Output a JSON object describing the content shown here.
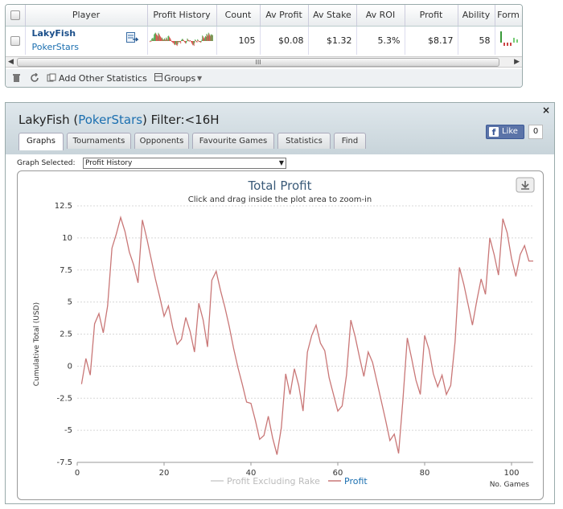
{
  "stats": {
    "columns": [
      "Player",
      "Profit History",
      "Count",
      "Av Profit",
      "Av Stake",
      "Av ROI",
      "Profit",
      "Ability",
      "Form"
    ],
    "row": {
      "player": "LakyFish",
      "site": "PokerStars",
      "count": "105",
      "av_profit": "$0.08",
      "av_stake": "$1.32",
      "av_roi": "5.3%",
      "profit": "$8.17",
      "ability": "58"
    },
    "toolbar": {
      "add_other": "Add Other Statistics",
      "groups": "Groups"
    },
    "scroll_grip": "III"
  },
  "window": {
    "player": "LakyFish",
    "paren_open": " (",
    "site": "PokerStars",
    "filter": ") Filter:<16H",
    "close": "×",
    "like": "Like",
    "like_count": "0",
    "tabs": [
      "Graphs",
      "Tournaments",
      "Opponents",
      "Favourite Games",
      "Statistics",
      "Find"
    ],
    "active_tab": "Graphs",
    "graph_selected_label": "Graph Selected:",
    "graph_selected_value": "Profit History"
  },
  "colors": {
    "profit_line": "#c97777",
    "rake_line": "#cccccc",
    "title": "#3a5a78"
  },
  "chart_data": {
    "type": "line",
    "title": "Total Profit",
    "subtitle": "Click and drag inside the plot area to zoom-in",
    "xlabel": "No. Games",
    "ylabel": "Cumulative Total (USD)",
    "xlim": [
      0,
      105
    ],
    "ylim": [
      -7.5,
      12.5
    ],
    "xticks": [
      0,
      20,
      40,
      60,
      80,
      100
    ],
    "yticks": [
      -7.5,
      -5,
      -2.5,
      0,
      2.5,
      5,
      7.5,
      10,
      12.5
    ],
    "xtick_labels": [
      "0",
      "20",
      "40",
      "60",
      "80",
      "100"
    ],
    "ytick_labels": [
      "-7.5",
      "-5",
      "-2.5",
      "0",
      "2.5",
      "5",
      "7.5",
      "10",
      "12.5"
    ],
    "legend": [
      {
        "name": "Profit Excluding Rake",
        "color": "#cccccc"
      },
      {
        "name": "Profit",
        "color": "#c97777"
      }
    ],
    "series": [
      {
        "name": "Profit",
        "color": "#c97777",
        "x": [
          1,
          2,
          3,
          4,
          5,
          6,
          7,
          8,
          9,
          10,
          11,
          12,
          13,
          14,
          15,
          16,
          17,
          18,
          19,
          20,
          21,
          22,
          23,
          24,
          25,
          26,
          27,
          28,
          29,
          30,
          31,
          32,
          33,
          34,
          35,
          36,
          37,
          38,
          39,
          40,
          41,
          42,
          43,
          44,
          45,
          46,
          47,
          48,
          49,
          50,
          51,
          52,
          53,
          54,
          55,
          56,
          57,
          58,
          59,
          60,
          61,
          62,
          63,
          64,
          65,
          66,
          67,
          68,
          69,
          70,
          71,
          72,
          73,
          74,
          75,
          76,
          77,
          78,
          79,
          80,
          81,
          82,
          83,
          84,
          85,
          86,
          87,
          88,
          89,
          90,
          91,
          92,
          93,
          94,
          95,
          96,
          97,
          98,
          99,
          100,
          101,
          102,
          103,
          104,
          105
        ],
        "y": [
          -1.4,
          0.6,
          -0.7,
          3.3,
          4.1,
          2.6,
          4.7,
          9.2,
          10.3,
          11.6,
          10.5,
          8.9,
          7.9,
          6.5,
          11.4,
          10.0,
          8.4,
          6.8,
          5.4,
          3.9,
          4.7,
          3.0,
          1.7,
          2.1,
          3.8,
          2.7,
          1.1,
          4.9,
          3.6,
          1.5,
          6.7,
          7.4,
          5.9,
          4.6,
          3.1,
          1.4,
          -0.1,
          -1.4,
          -2.8,
          -2.9,
          -4.2,
          -5.7,
          -5.4,
          -3.9,
          -5.6,
          -6.9,
          -4.8,
          -0.6,
          -2.2,
          -0.2,
          -1.5,
          -3.5,
          1.1,
          2.4,
          3.2,
          1.8,
          1.2,
          -0.9,
          -2.2,
          -3.5,
          -3.1,
          -0.7,
          3.6,
          2.3,
          0.7,
          -0.8,
          1.1,
          0.3,
          -1.2,
          -2.7,
          -4.2,
          -5.8,
          -5.3,
          -6.8,
          -2.6,
          2.2,
          0.6,
          -1.1,
          -2.2,
          2.4,
          1.3,
          -0.6,
          -1.6,
          -0.7,
          -2.2,
          -1.5,
          1.9,
          7.7,
          6.4,
          4.8,
          3.2,
          5.1,
          6.8,
          5.6,
          10.0,
          8.7,
          7.1,
          11.5,
          10.4,
          8.4,
          7.0,
          8.7,
          9.4,
          8.2,
          8.2
        ]
      }
    ]
  }
}
